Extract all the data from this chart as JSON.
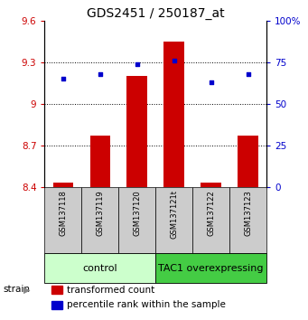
{
  "title": "GDS2451 / 250187_at",
  "samples": [
    "GSM137118",
    "GSM137119",
    "GSM137120",
    "GSM137121t",
    "GSM137122",
    "GSM137123"
  ],
  "bar_values": [
    8.43,
    8.77,
    9.2,
    9.45,
    8.43,
    8.77
  ],
  "bar_bottom": 8.4,
  "percentile_values": [
    65,
    68,
    74,
    76,
    63,
    68
  ],
  "bar_color": "#cc0000",
  "dot_color": "#0000cc",
  "ylim_left": [
    8.4,
    9.6
  ],
  "ylim_right": [
    0,
    100
  ],
  "yticks_left": [
    8.4,
    8.7,
    9.0,
    9.3,
    9.6
  ],
  "yticks_right": [
    0,
    25,
    50,
    75,
    100
  ],
  "ytick_labels_left": [
    "8.4",
    "8.7",
    "9",
    "9.3",
    "9.6"
  ],
  "ytick_labels_right": [
    "0",
    "25",
    "50",
    "75",
    "100%"
  ],
  "hlines": [
    8.7,
    9.0,
    9.3
  ],
  "groups": [
    {
      "label": "control",
      "indices": [
        0,
        1,
        2
      ],
      "color": "#ccffcc",
      "edge_color": "#aaddaa"
    },
    {
      "label": "TAC1 overexpressing",
      "indices": [
        3,
        4,
        5
      ],
      "color": "#44cc44",
      "edge_color": "#22aa22"
    }
  ],
  "strain_label": "strain",
  "legend_items": [
    {
      "label": "transformed count",
      "color": "#cc0000"
    },
    {
      "label": "percentile rank within the sample",
      "color": "#0000cc"
    }
  ],
  "bar_width": 0.55,
  "title_fontsize": 10,
  "tick_fontsize": 7.5,
  "label_fontsize": 7.5,
  "sample_fontsize": 6,
  "group_fontsize": 8,
  "sample_box_color": "#cccccc",
  "fig_bg": "#ffffff"
}
